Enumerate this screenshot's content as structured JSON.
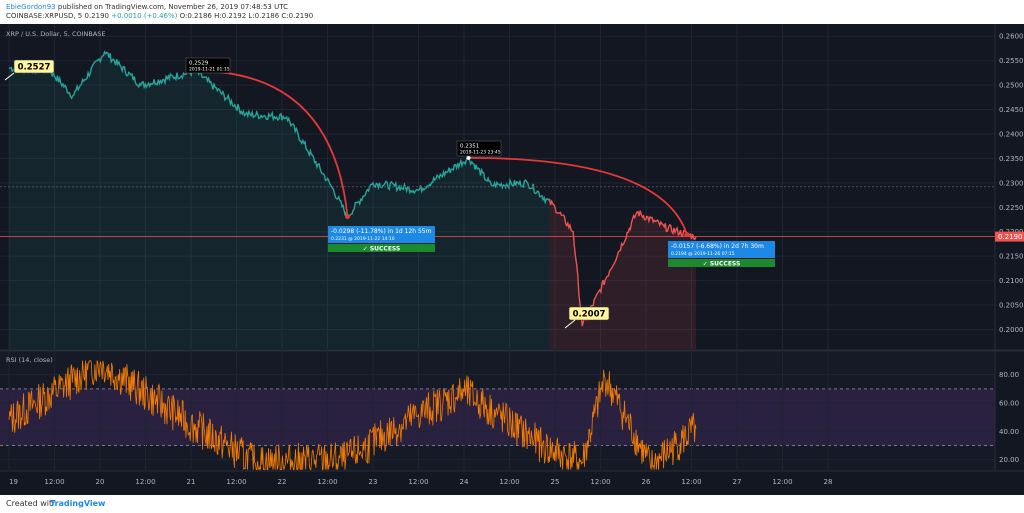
{
  "header": {
    "author": "EbieGordon93",
    "published": "published on TradingView.com, November 26, 2019 07:48:53 UTC",
    "symbol": "COINBASE:XRPUSD, 5",
    "price": "0.2190",
    "change": "+0.0010 (+0.46%)",
    "ohlc": "O:0.2186  H:0.2192  L:0.2186  C:0.2190"
  },
  "footer": {
    "created": "Created with",
    "brand": "TradingView"
  },
  "colors": {
    "bg": "#131722",
    "grid": "#1f2433",
    "up": "#26a69a",
    "down": "#ef5350",
    "rsi": "#f57c00",
    "rsi_band": "#2a2140",
    "arc": "#e53935",
    "label_blue": "#1e88e5",
    "label_green": "#1b8a2f"
  },
  "chart_data": [
    {
      "type": "line",
      "title": "XRP / U.S. Dollar, 5, COINBASE",
      "xlabel": "",
      "ylabel": "",
      "x_ticks": [
        "19",
        "12:00",
        "20",
        "12:00",
        "21",
        "12:00",
        "22",
        "12:00",
        "23",
        "12:00",
        "24",
        "12:00",
        "25",
        "12:00",
        "26",
        "12:00",
        "27",
        "12:00",
        "28"
      ],
      "ylim": [
        0.196,
        0.2625
      ],
      "y_ticks": [
        "0.2600",
        "0.2550",
        "0.2500",
        "0.2450",
        "0.2400",
        "0.2350",
        "0.2300",
        "0.2250",
        "0.2200",
        "0.2150",
        "0.2100",
        "0.2050",
        "0.2000"
      ],
      "grid": true,
      "current_price": "0.2190",
      "key_points": [
        {
          "t": 0.0,
          "v": 0.2535
        },
        {
          "t": 0.45,
          "v": 0.253
        },
        {
          "t": 0.7,
          "v": 0.2478
        },
        {
          "t": 1.05,
          "v": 0.2568
        },
        {
          "t": 1.45,
          "v": 0.25
        },
        {
          "t": 2.05,
          "v": 0.2529
        },
        {
          "t": 2.6,
          "v": 0.244
        },
        {
          "t": 3.05,
          "v": 0.2435
        },
        {
          "t": 3.55,
          "v": 0.229
        },
        {
          "t": 3.72,
          "v": 0.2231
        },
        {
          "t": 4.0,
          "v": 0.23
        },
        {
          "t": 4.5,
          "v": 0.2285
        },
        {
          "t": 5.05,
          "v": 0.2351
        },
        {
          "t": 5.3,
          "v": 0.2295
        },
        {
          "t": 5.7,
          "v": 0.23
        },
        {
          "t": 6.0,
          "v": 0.225
        },
        {
          "t": 6.2,
          "v": 0.22
        },
        {
          "t": 6.3,
          "v": 0.2007
        },
        {
          "t": 6.6,
          "v": 0.212
        },
        {
          "t": 6.9,
          "v": 0.224
        },
        {
          "t": 7.2,
          "v": 0.221
        },
        {
          "t": 7.45,
          "v": 0.2194
        },
        {
          "t": 7.55,
          "v": 0.219
        }
      ],
      "annotations": [
        {
          "text": "0.2527",
          "style": "yellow"
        },
        {
          "text": "0.2529",
          "sub": "2019-11-21 01:15",
          "style": "dark"
        },
        {
          "text": "0.2351",
          "sub": "2019-11-23 23:45",
          "style": "dark"
        },
        {
          "text": "0.2007",
          "style": "yellow"
        },
        {
          "text": "-0.0298 (-11.78%) in 1d 12h 55m",
          "sub": "0.2231 @ 2019-11-22  14:10",
          "badge": "✓ SUCCESS",
          "style": "blue"
        },
        {
          "text": "-0.0157 (-6.68%) in 2d 7h 30m",
          "sub": "0.2194 @ 2019-11-26  07:15",
          "badge": "✓ SUCCESS",
          "style": "blue"
        }
      ]
    },
    {
      "type": "line",
      "title": "RSI (14, close)",
      "xlabel": "",
      "ylabel": "",
      "ylim": [
        12,
        96
      ],
      "y_ticks": [
        "80.00",
        "60.00",
        "40.00",
        "20.00"
      ],
      "bands": [
        30,
        70
      ],
      "key_points": [
        {
          "t": 0.0,
          "v": 48
        },
        {
          "t": 1.0,
          "v": 88
        },
        {
          "t": 2.0,
          "v": 45
        },
        {
          "t": 2.7,
          "v": 18
        },
        {
          "t": 3.7,
          "v": 20
        },
        {
          "t": 4.5,
          "v": 52
        },
        {
          "t": 5.0,
          "v": 68
        },
        {
          "t": 5.9,
          "v": 28
        },
        {
          "t": 6.3,
          "v": 18
        },
        {
          "t": 6.55,
          "v": 78
        },
        {
          "t": 7.05,
          "v": 15
        },
        {
          "t": 7.55,
          "v": 42
        }
      ]
    }
  ]
}
